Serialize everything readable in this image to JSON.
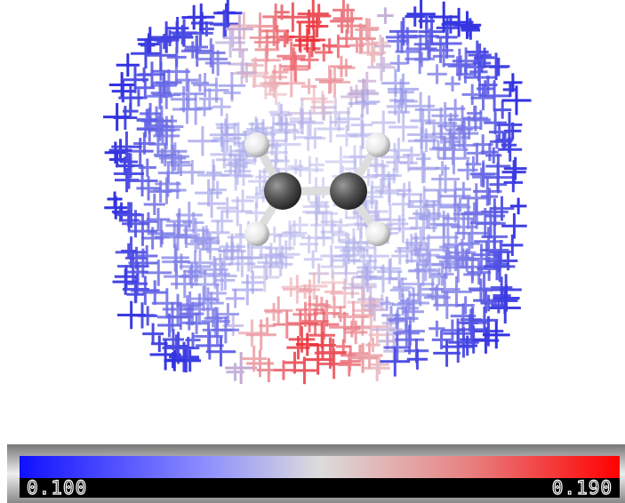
{
  "colorbar": {
    "min_label": "0.100",
    "max_label": "0.190"
  }
}
